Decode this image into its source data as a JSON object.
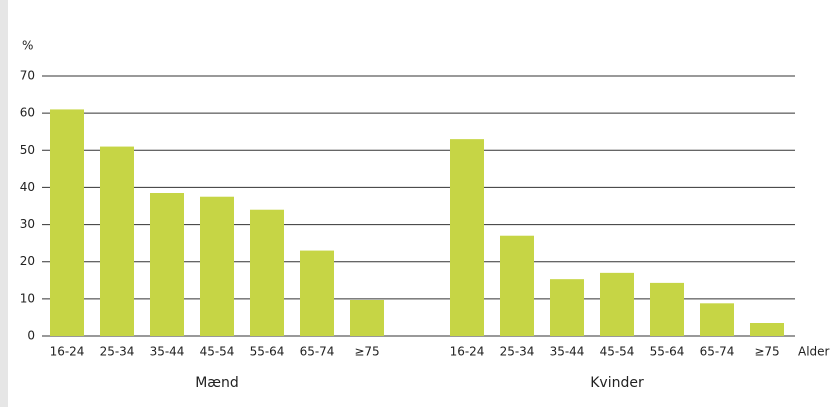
{
  "chart_data": {
    "type": "bar",
    "y_label": "%",
    "x_label": "Alder",
    "color": "#c6d545",
    "ylim": [
      0,
      70
    ],
    "yticks": [
      0,
      10,
      20,
      30,
      40,
      50,
      60,
      70
    ],
    "grid": true,
    "groups": [
      {
        "name": "Mænd",
        "categories": [
          "16-24",
          "25-34",
          "35-44",
          "45-54",
          "55-64",
          "65-74",
          "≥75"
        ],
        "values": [
          61,
          51,
          38.5,
          37.5,
          34,
          23,
          9.7
        ]
      },
      {
        "name": "Kvinder",
        "categories": [
          "16-24",
          "25-34",
          "35-44",
          "45-54",
          "55-64",
          "65-74",
          "≥75"
        ],
        "values": [
          53,
          27,
          15.3,
          17,
          14.3,
          8.8,
          3.5
        ]
      }
    ]
  }
}
